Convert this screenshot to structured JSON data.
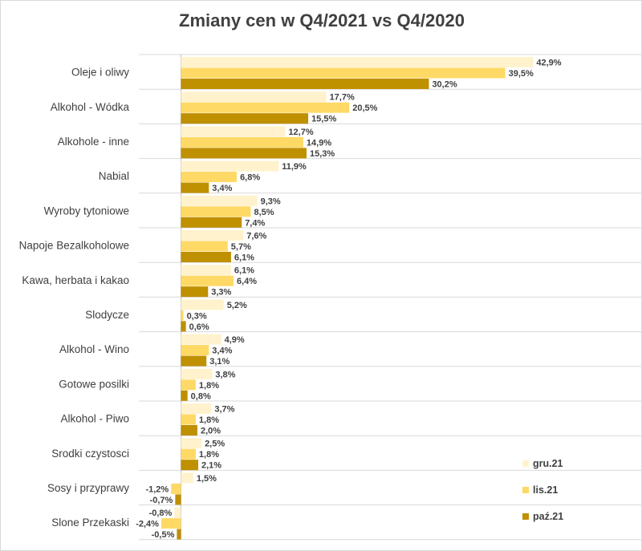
{
  "chart_data": {
    "type": "bar",
    "orientation": "horizontal",
    "title": "Zmiany cen w Q4/2021 vs Q4/2020",
    "categories": [
      "Oleje i oliwy",
      "Alkohol - Wódka",
      "Alkohole - inne",
      "Nabial",
      "Wyroby tytoniowe",
      "Napoje Bezalkoholowe",
      "Kawa, herbata i kakao",
      "Slodycze",
      "Alkohol - Wino",
      "Gotowe posilki",
      "Alkohol - Piwo",
      "Srodki czystosci",
      "Sosy i przyprawy",
      "Slone Przekaski"
    ],
    "series": [
      {
        "name": "gru.21",
        "color": "#fff2cc",
        "values": [
          42.9,
          17.7,
          12.7,
          11.9,
          9.3,
          7.6,
          6.1,
          5.2,
          4.9,
          3.8,
          3.7,
          2.5,
          1.5,
          -0.8
        ],
        "labels": [
          "42,9%",
          "17,7%",
          "12,7%",
          "11,9%",
          "9,3%",
          "7,6%",
          "6,1%",
          "5,2%",
          "4,9%",
          "3,8%",
          "3,7%",
          "2,5%",
          "1,5%",
          "-0,8%"
        ]
      },
      {
        "name": "lis.21",
        "color": "#ffd966",
        "values": [
          39.5,
          20.5,
          14.9,
          6.8,
          8.5,
          5.7,
          6.4,
          0.3,
          3.4,
          1.8,
          1.8,
          1.8,
          -1.2,
          -2.4
        ],
        "labels": [
          "39,5%",
          "20,5%",
          "14,9%",
          "6,8%",
          "8,5%",
          "5,7%",
          "6,4%",
          "0,3%",
          "3,4%",
          "1,8%",
          "1,8%",
          "1,8%",
          "-1,2%",
          "-2,4%"
        ]
      },
      {
        "name": "paź.21",
        "color": "#bf9000",
        "values": [
          30.2,
          15.5,
          15.3,
          3.4,
          7.4,
          6.1,
          3.3,
          0.6,
          3.1,
          0.8,
          2.0,
          2.1,
          -0.7,
          -0.5
        ],
        "labels": [
          "30,2%",
          "15,5%",
          "15,3%",
          "3,4%",
          "7,4%",
          "6,1%",
          "3,3%",
          "0,6%",
          "3,1%",
          "0,8%",
          "2,0%",
          "2,1%",
          "-0,7%",
          "-0,5%"
        ]
      }
    ],
    "grid": true,
    "legend_position": "bottom-right"
  }
}
